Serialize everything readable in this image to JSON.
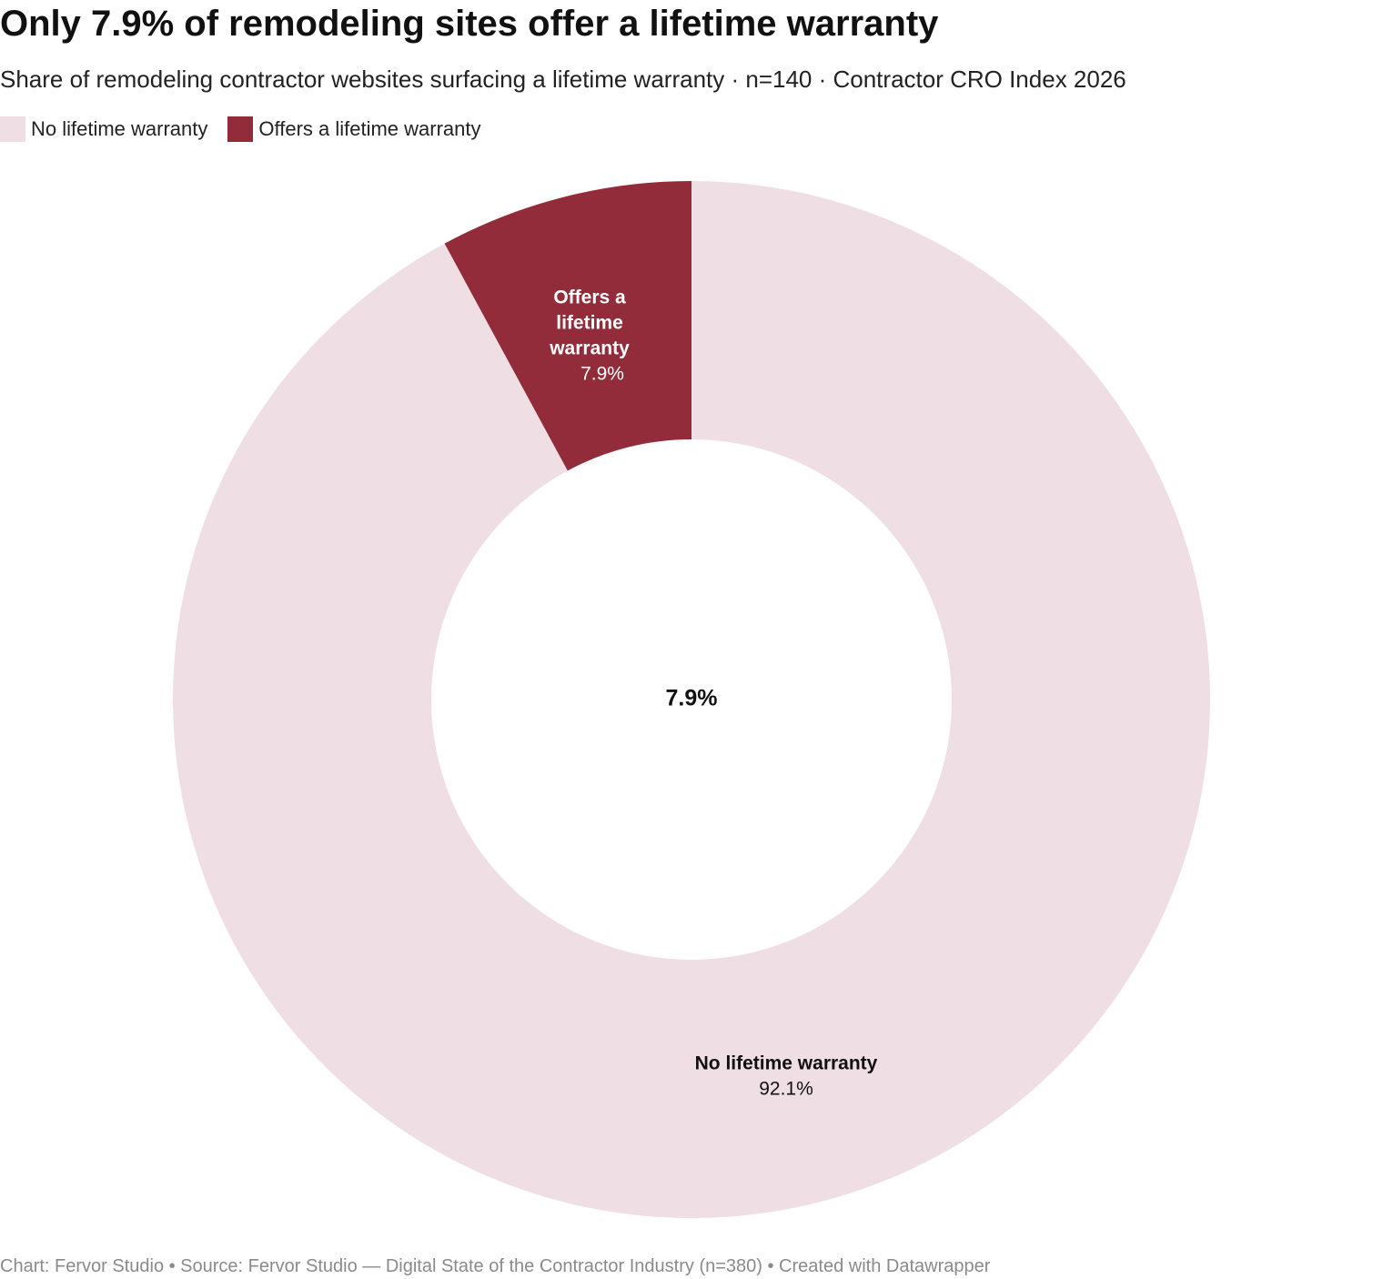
{
  "title": "Only 7.9% of remodeling sites offer a lifetime warranty",
  "subtitle": "Share of remodeling contractor websites surfacing a lifetime warranty · n=140 · Contractor CRO Index 2026",
  "footer": "Chart: Fervor Studio • Source: Fervor Studio — Digital State of the Contractor Industry (n=380) • Created with Datawrapper",
  "legend": [
    {
      "label": "No lifetime warranty",
      "color": "#efdfe4"
    },
    {
      "label": "Offers a lifetime warranty",
      "color": "#922c3a"
    }
  ],
  "chart_data": {
    "type": "pie",
    "donut": true,
    "center_label": "7.9%",
    "legend_position": "top-left",
    "slices": [
      {
        "label": "Offers a lifetime warranty",
        "value": 7.9,
        "value_label": "7.9%",
        "color": "#922c3a",
        "label_color": "#ffffff"
      },
      {
        "label": "No lifetime warranty",
        "value": 92.1,
        "value_label": "92.1%",
        "color": "#efdfe4",
        "label_color": "#111111"
      }
    ]
  }
}
